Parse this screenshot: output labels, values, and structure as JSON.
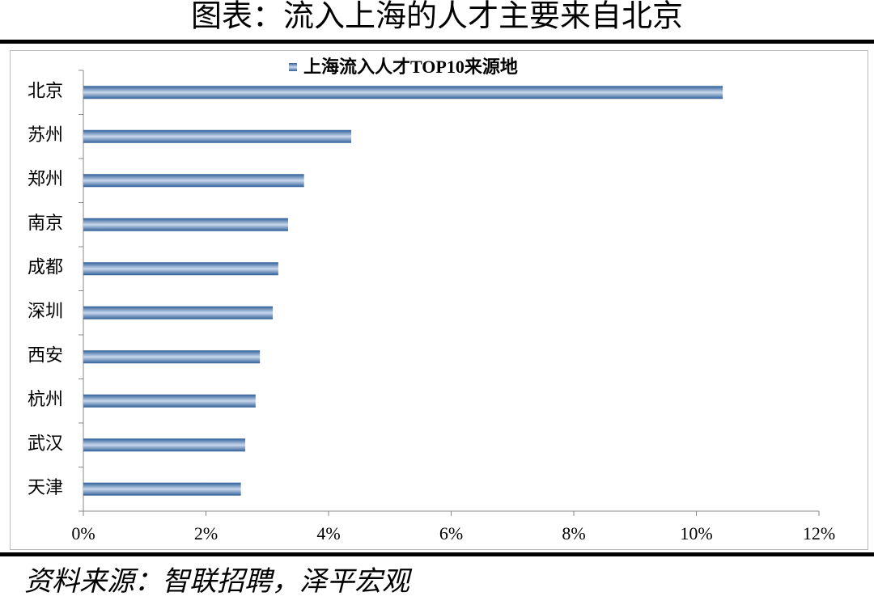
{
  "title": "图表：流入上海的人才主要来自北京",
  "source": "资料来源：智联招聘，泽平宏观",
  "chart_data": {
    "type": "hbar",
    "series": [
      {
        "name": "上海流入人才TOP10来源地",
        "color": "#4f81bd",
        "values": [
          10.43,
          4.37,
          3.6,
          3.34,
          3.18,
          3.09,
          2.88,
          2.81,
          2.64,
          2.57
        ]
      }
    ],
    "categories": [
      "北京",
      "苏州",
      "郑州",
      "南京",
      "成都",
      "深圳",
      "西安",
      "杭州",
      "武汉",
      "天津"
    ],
    "xlim": [
      0,
      12
    ],
    "xticks": [
      {
        "value": 0,
        "label": "0%"
      },
      {
        "value": 2,
        "label": "2%"
      },
      {
        "value": 4,
        "label": "4%"
      },
      {
        "value": 6,
        "label": "6%"
      },
      {
        "value": 8,
        "label": "8%"
      },
      {
        "value": 10,
        "label": "10%"
      },
      {
        "value": 12,
        "label": "12%"
      }
    ]
  }
}
